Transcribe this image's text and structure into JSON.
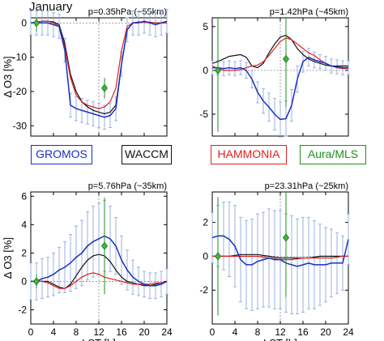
{
  "figure_title": "January",
  "colors": {
    "GROMOS": "#1a2fc4",
    "WACCM": "#111111",
    "HAMMONIA": "#e02020",
    "Aura/MLS": "#1e8f1e",
    "errorbar": "#9ab0e0"
  },
  "legend": [
    {
      "name": "GROMOS",
      "color": "#1a2fc4"
    },
    {
      "name": "WACCM",
      "color": "#111111"
    },
    {
      "name": "HAMMONIA",
      "color": "#e02020"
    },
    {
      "name": "Aura/MLS",
      "color": "#1e8f1e"
    }
  ],
  "chart_data": [
    {
      "type": "line",
      "title": "p=0.35hPa (~55km)",
      "xlabel": "",
      "ylabel": "Δ O3 [%]",
      "xlim": [
        0,
        24
      ],
      "ylim": [
        -33,
        1.5
      ],
      "xticks": [
        0,
        4,
        8,
        12,
        16,
        20,
        24
      ],
      "xtick_labels": [
        "",
        "",
        "",
        "",
        "",
        "",
        ""
      ],
      "yticks": [
        0,
        -10,
        -20,
        -30
      ],
      "ytick_labels": [
        "0",
        "-10",
        "-20",
        "-30"
      ],
      "series": [
        {
          "name": "GROMOS",
          "x": [
            0,
            1,
            2,
            3,
            4,
            5,
            6,
            7,
            8,
            9,
            10,
            11,
            12,
            13,
            14,
            15,
            16,
            17,
            18,
            19,
            20,
            21,
            22,
            23,
            24
          ],
          "y": [
            0,
            0,
            0,
            0,
            -0.5,
            -1,
            -8,
            -24,
            -25,
            -25.5,
            -26,
            -26.5,
            -27,
            -27.5,
            -27,
            -25,
            -12,
            -2,
            0,
            0,
            0.5,
            0,
            -0.5,
            0,
            0.5
          ]
        },
        {
          "name": "WACCM",
          "x": [
            0,
            1,
            2,
            3,
            4,
            5,
            6,
            7,
            8,
            9,
            10,
            11,
            12,
            13,
            14,
            15,
            16,
            17,
            18,
            19,
            20,
            21,
            22,
            23,
            24
          ],
          "y": [
            0,
            0.3,
            0.5,
            0.5,
            0.3,
            -0.5,
            -6,
            -15,
            -20,
            -23,
            -24.5,
            -25.5,
            -26,
            -26.5,
            -26,
            -24,
            -12,
            -2,
            0,
            0.3,
            0.3,
            0.2,
            0,
            0,
            0
          ]
        },
        {
          "name": "HAMMONIA",
          "x": [
            0,
            1,
            2,
            3,
            4,
            5,
            6,
            7,
            8,
            9,
            10,
            11,
            12,
            13,
            14,
            15,
            16,
            17,
            18,
            19,
            20,
            21,
            22,
            23,
            24
          ],
          "y": [
            0,
            0.2,
            0.5,
            0.5,
            0,
            -1,
            -7,
            -16,
            -21,
            -23,
            -24,
            -24.5,
            -25,
            -24.5,
            -23,
            -19,
            -8,
            -1,
            0,
            0.2,
            0.2,
            0.1,
            0,
            0,
            0
          ]
        },
        {
          "name": "Aura/MLS",
          "x": [
            1,
            13
          ],
          "y": [
            0,
            -19
          ]
        }
      ],
      "errorbars": {
        "x": [
          0,
          1,
          2,
          3,
          4,
          5,
          6,
          7,
          8,
          9,
          10,
          11,
          12,
          13,
          14,
          15,
          16,
          17,
          18,
          19,
          20,
          21,
          22,
          23,
          24
        ],
        "yerr": [
          3.5,
          3.5,
          3.5,
          3.5,
          3.5,
          3.5,
          3.5,
          3.5,
          3.5,
          3.5,
          3.5,
          3.5,
          3.5,
          3.5,
          3.5,
          3.5,
          3.5,
          3.5,
          3.5,
          3.5,
          3.5,
          3.5,
          3.5,
          3.5,
          3.5
        ]
      },
      "mls_err": [
        2.5,
        3
      ]
    },
    {
      "type": "line",
      "title": "p=1.42hPa (~45km)",
      "xlabel": "",
      "ylabel": "",
      "xlim": [
        0,
        24
      ],
      "ylim": [
        -7.5,
        6
      ],
      "xticks": [
        0,
        4,
        8,
        12,
        16,
        20,
        24
      ],
      "xtick_labels": [
        "",
        "",
        "",
        "",
        "",
        "",
        ""
      ],
      "yticks": [
        5,
        0,
        -5
      ],
      "ytick_labels": [
        "5",
        "0",
        "-5"
      ],
      "series": [
        {
          "name": "GROMOS",
          "x": [
            0,
            1,
            2,
            3,
            4,
            5,
            6,
            7,
            8,
            9,
            10,
            11,
            12,
            13,
            14,
            15,
            16,
            17,
            18,
            19,
            20,
            21,
            22,
            23,
            24
          ],
          "y": [
            0.3,
            0.3,
            0.2,
            0.3,
            0.2,
            0.3,
            0,
            -1,
            -2.5,
            -3.5,
            -4.2,
            -5,
            -5.6,
            -5.5,
            -4,
            -1,
            1,
            1.5,
            1.2,
            1,
            0.8,
            0.5,
            0.4,
            0.3,
            0.3
          ]
        },
        {
          "name": "WACCM",
          "x": [
            0,
            1,
            2,
            3,
            4,
            5,
            6,
            7,
            8,
            9,
            10,
            11,
            12,
            13,
            14,
            15,
            16,
            17,
            18,
            19,
            20,
            21,
            22,
            23,
            24
          ],
          "y": [
            0.8,
            1,
            1.3,
            1.6,
            1.7,
            1.8,
            1.5,
            0.5,
            0.3,
            0.8,
            2,
            3,
            3.8,
            4,
            3.5,
            2.5,
            1.8,
            1.3,
            1,
            0.8,
            0.6,
            0.5,
            0.5,
            0.5,
            0.5
          ]
        },
        {
          "name": "HAMMONIA",
          "x": [
            0,
            1,
            2,
            3,
            4,
            5,
            6,
            7,
            8,
            9,
            10,
            11,
            12,
            13,
            14,
            15,
            16,
            17,
            18,
            19,
            20,
            21,
            22,
            23,
            24
          ],
          "y": [
            0.5,
            0.2,
            0,
            0,
            0,
            0.1,
            0.3,
            0.5,
            0.6,
            1,
            1.7,
            2.5,
            3.3,
            3.7,
            3.5,
            3,
            2.5,
            2,
            1.7,
            1.2,
            0.8,
            0.5,
            0.3,
            0.2,
            0.2
          ]
        },
        {
          "name": "Aura/MLS",
          "x": [
            1,
            13
          ],
          "y": [
            0,
            1.3
          ]
        }
      ],
      "errorbars": {
        "x": [
          0,
          1,
          2,
          3,
          4,
          5,
          6,
          7,
          8,
          9,
          10,
          11,
          12,
          13,
          14,
          15,
          16,
          17,
          18,
          19,
          20,
          21,
          22,
          23,
          24
        ],
        "yerr": [
          0.8,
          0.8,
          0.8,
          0.8,
          0.8,
          0.8,
          0.9,
          1,
          1.2,
          1.4,
          1.6,
          1.8,
          2,
          2,
          1.8,
          1.5,
          1.2,
          1,
          0.9,
          0.8,
          0.8,
          0.8,
          0.8,
          0.8,
          0.8
        ]
      },
      "mls_err": [
        7,
        5.5
      ]
    },
    {
      "type": "line",
      "title": "p=5.76hPa (~35km)",
      "xlabel": "LST [h]",
      "ylabel": "Δ O3 [%]",
      "xlim": [
        0,
        24
      ],
      "ylim": [
        -3,
        6.3
      ],
      "xticks": [
        0,
        4,
        8,
        12,
        16,
        20,
        24
      ],
      "xtick_labels": [
        "0",
        "4",
        "8",
        "12",
        "16",
        "20",
        "24"
      ],
      "yticks": [
        6,
        4,
        2,
        0,
        -2
      ],
      "ytick_labels": [
        "6",
        "4",
        "2",
        "0",
        "-2"
      ],
      "series": [
        {
          "name": "GROMOS",
          "x": [
            0,
            1,
            2,
            3,
            4,
            5,
            6,
            7,
            8,
            9,
            10,
            11,
            12,
            13,
            14,
            15,
            16,
            17,
            18,
            19,
            20,
            21,
            22,
            23,
            24
          ],
          "y": [
            0,
            0,
            0.2,
            0.3,
            0.5,
            0.8,
            1,
            1.3,
            1.7,
            2,
            2.5,
            2.8,
            3,
            3.2,
            3,
            2.5,
            1.5,
            0.8,
            0.3,
            0,
            -0.2,
            -0.3,
            -0.3,
            -0.2,
            0
          ]
        },
        {
          "name": "WACCM",
          "x": [
            0,
            1,
            2,
            3,
            4,
            5,
            6,
            7,
            8,
            9,
            10,
            11,
            12,
            13,
            14,
            15,
            16,
            17,
            18,
            19,
            20,
            21,
            22,
            23,
            24
          ],
          "y": [
            0,
            0,
            0,
            0,
            -0.2,
            -0.4,
            -0.5,
            -0.2,
            0.4,
            1,
            1.5,
            1.8,
            1.9,
            1.8,
            1.4,
            0.8,
            0.3,
            0,
            -0.1,
            -0.2,
            -0.3,
            -0.3,
            -0.2,
            -0.1,
            0
          ]
        },
        {
          "name": "HAMMONIA",
          "x": [
            0,
            1,
            2,
            3,
            4,
            5,
            6,
            7,
            8,
            9,
            10,
            11,
            12,
            13,
            14,
            15,
            16,
            17,
            18,
            19,
            20,
            21,
            22,
            23,
            24
          ],
          "y": [
            0,
            0,
            0,
            -0.1,
            -0.3,
            -0.5,
            -0.5,
            -0.3,
            0,
            0.3,
            0.5,
            0.6,
            0.5,
            0.3,
            0.2,
            0.1,
            0,
            -0.1,
            -0.2,
            -0.2,
            -0.2,
            -0.2,
            -0.1,
            -0.1,
            0
          ]
        },
        {
          "name": "Aura/MLS",
          "x": [
            1,
            13
          ],
          "y": [
            0,
            2.5
          ]
        }
      ],
      "errorbars": {
        "x": [
          0,
          1,
          2,
          3,
          4,
          5,
          6,
          7,
          8,
          9,
          10,
          11,
          12,
          13,
          14,
          15,
          16,
          17,
          18,
          19,
          20,
          21,
          22,
          23,
          24
        ],
        "yerr": [
          1.3,
          1.3,
          1.4,
          1.4,
          1.5,
          1.6,
          1.8,
          2,
          2.2,
          2.3,
          2.4,
          2.5,
          2.5,
          2.5,
          2.3,
          2,
          1.7,
          1.4,
          1.2,
          1,
          0.9,
          0.9,
          0.9,
          0.9,
          0.9
        ]
      },
      "mls_err": [
        0.5,
        3.4
      ]
    },
    {
      "type": "line",
      "title": "p=23.31hPa (~25km)",
      "xlabel": "LST [h]",
      "ylabel": "",
      "xlim": [
        0,
        24
      ],
      "ylim": [
        -4,
        3.8
      ],
      "xticks": [
        0,
        4,
        8,
        12,
        16,
        20,
        24
      ],
      "xtick_labels": [
        "0",
        "4",
        "8",
        "12",
        "16",
        "20",
        "24"
      ],
      "yticks": [
        2,
        0,
        -2
      ],
      "ytick_labels": [
        "2",
        "0",
        "-2"
      ],
      "series": [
        {
          "name": "GROMOS",
          "x": [
            0,
            1,
            2,
            3,
            4,
            5,
            6,
            7,
            8,
            9,
            10,
            11,
            12,
            13,
            14,
            15,
            16,
            17,
            18,
            19,
            20,
            21,
            22,
            23,
            24
          ],
          "y": [
            1.1,
            1.2,
            1.2,
            1,
            0.6,
            -0.2,
            -0.5,
            -0.5,
            -0.3,
            -0.2,
            -0.1,
            -0.2,
            -0.2,
            -0.4,
            -0.5,
            -0.6,
            -0.5,
            -0.4,
            -0.5,
            -0.5,
            -0.5,
            -0.4,
            -0.4,
            -0.4,
            1
          ]
        },
        {
          "name": "WACCM",
          "x": [
            0,
            1,
            2,
            3,
            4,
            5,
            6,
            7,
            8,
            9,
            10,
            11,
            12,
            13,
            14,
            15,
            16,
            17,
            18,
            19,
            20,
            21,
            22,
            23,
            24
          ],
          "y": [
            0,
            0,
            0,
            0,
            0.05,
            0.1,
            0.1,
            0.1,
            0.1,
            0.05,
            0,
            -0.05,
            -0.1,
            -0.1,
            -0.1,
            -0.1,
            -0.1,
            -0.1,
            -0.05,
            0,
            0,
            0,
            0,
            0,
            0
          ]
        },
        {
          "name": "HAMMONIA",
          "x": [
            0,
            1,
            2,
            3,
            4,
            5,
            6,
            7,
            8,
            9,
            10,
            11,
            12,
            13,
            14,
            15,
            16,
            17,
            18,
            19,
            20,
            21,
            22,
            23,
            24
          ],
          "y": [
            0,
            0,
            0,
            0,
            0,
            0,
            0,
            0,
            0,
            -0.05,
            -0.1,
            -0.15,
            -0.2,
            -0.2,
            -0.2,
            -0.15,
            -0.1,
            -0.1,
            -0.1,
            -0.1,
            -0.1,
            -0.1,
            -0.05,
            0,
            0
          ]
        },
        {
          "name": "Aura/MLS",
          "x": [
            1,
            13
          ],
          "y": [
            0,
            1.1
          ]
        }
      ],
      "errorbars": {
        "x": [
          0,
          1,
          2,
          3,
          4,
          5,
          6,
          7,
          8,
          9,
          10,
          11,
          12,
          13,
          14,
          15,
          16,
          17,
          18,
          19,
          20,
          21,
          22,
          23,
          24
        ],
        "yerr": [
          1.5,
          1.8,
          2,
          2.2,
          2.4,
          2.5,
          2.6,
          2.7,
          2.8,
          2.8,
          2.9,
          2.9,
          2.9,
          2.9,
          2.9,
          2.8,
          2.8,
          2.7,
          2.6,
          2.4,
          2.2,
          2,
          1.8,
          1.6,
          1.5
        ]
      },
      "mls_err": [
        3.5,
        3.5
      ]
    }
  ]
}
